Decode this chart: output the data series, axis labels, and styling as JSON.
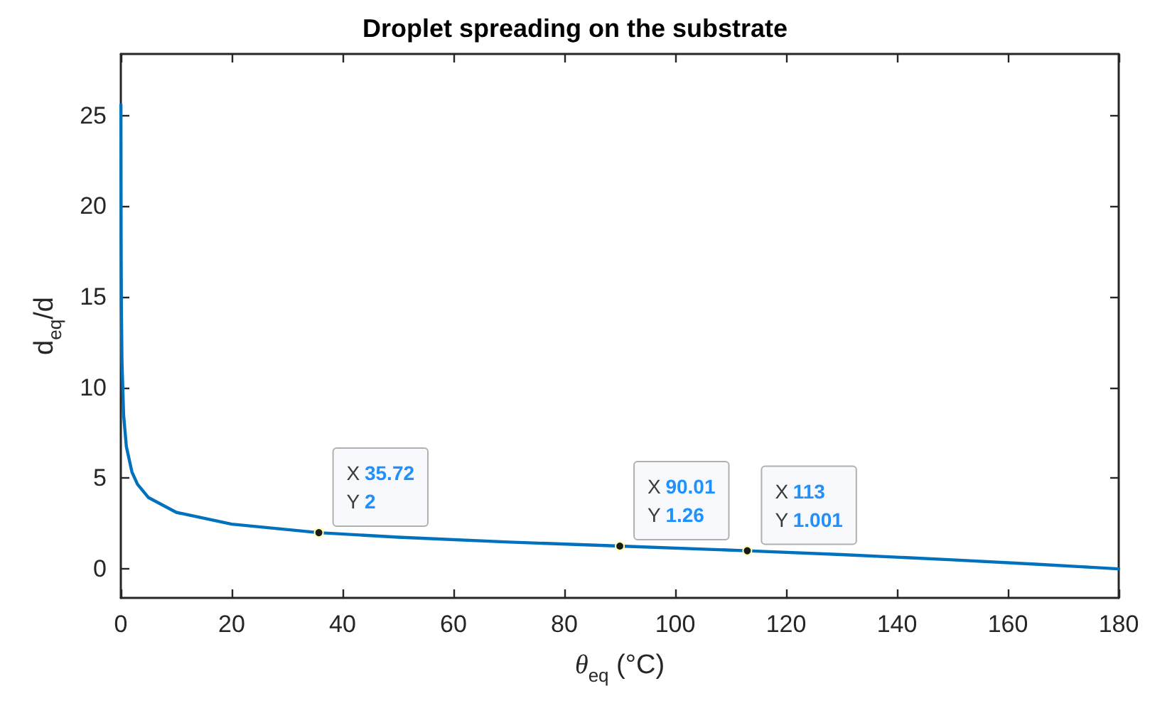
{
  "chart_data": {
    "type": "line",
    "title": "Droplet spreading on the substrate",
    "xlabel": "θ$_{eq}$ (°C)",
    "ylabel": "d$_{eq}$/d",
    "series": [
      {
        "color": "#0072bd",
        "x": [
          0.018,
          0.05,
          0.1,
          0.2,
          0.5,
          1,
          2,
          3,
          5,
          10,
          20,
          35.72,
          50,
          70,
          90.01,
          113,
          130,
          150,
          165,
          175,
          180
        ],
        "values": [
          25.6,
          18.3,
          14.5,
          11.5,
          8.5,
          6.74,
          5.35,
          4.67,
          3.93,
          3.12,
          2.47,
          2,
          1.75,
          1.48,
          1.26,
          1.001,
          0.79,
          0.5,
          0.26,
          0.09,
          0
        ]
      }
    ],
    "annotations": [
      {
        "text": "X 35.72\nY 2",
        "x": 35.72,
        "y": 2
      },
      {
        "text": "X 90.01\nY 1.26",
        "x": 90.01,
        "y": 1.26
      },
      {
        "text": "X 113\nY 1.001",
        "x": 113,
        "y": 1.001
      }
    ],
    "xlim": [
      0,
      180
    ],
    "xticks": [
      0,
      20,
      40,
      60,
      80,
      100,
      120,
      140,
      160,
      180
    ],
    "ylim": [
      -1.6,
      28.4
    ],
    "yticks": [
      0,
      5,
      10,
      15,
      20,
      25
    ],
    "grid": false,
    "marker": "none",
    "line_style": "solid"
  }
}
